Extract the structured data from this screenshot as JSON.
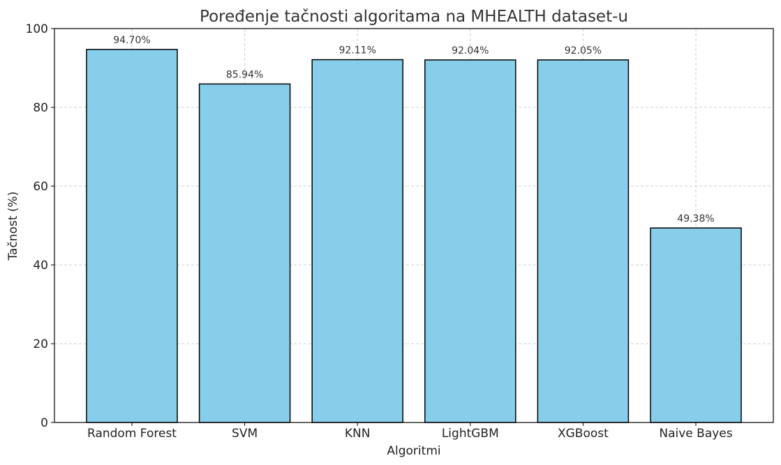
{
  "chart_data": {
    "type": "bar",
    "title": "Poređenje tačnosti algoritama na MHEALTH dataset-u",
    "xlabel": "Algoritmi",
    "ylabel": "Tačnost (%)",
    "categories": [
      "Random Forest",
      "SVM",
      "KNN",
      "LightGBM",
      "XGBoost",
      "Naive Bayes"
    ],
    "values": [
      94.7,
      85.94,
      92.11,
      92.04,
      92.05,
      49.38
    ],
    "value_labels": [
      "94.70%",
      "85.94%",
      "92.11%",
      "92.04%",
      "92.05%",
      "49.38%"
    ],
    "ylim": [
      0,
      100
    ],
    "yticks": [
      0,
      20,
      40,
      60,
      80,
      100
    ],
    "grid": true,
    "bar_color": "#87CEEB",
    "edge_color": "#000000"
  }
}
